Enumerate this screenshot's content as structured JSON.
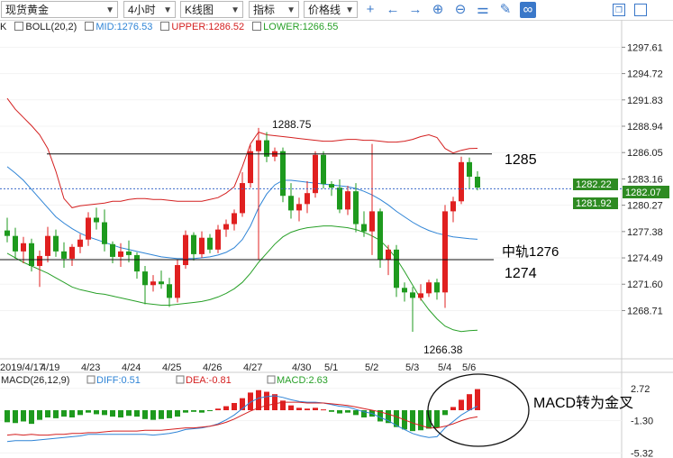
{
  "toolbar": {
    "symbol": "现货黄金",
    "period": "4小时",
    "chart_type": "K线图",
    "indicator": "指标",
    "price_line": "价格线",
    "icons": [
      "crosshair-icon",
      "arrow-left-icon",
      "arrow-right-icon",
      "zoom-in-icon",
      "zoom-out-icon",
      "chart-settings-icon",
      "draw-pen-icon",
      "link-icon",
      "window-restore-icon",
      "window-maximize-icon"
    ]
  },
  "legend": {
    "prefix": "K",
    "indicator": "BOLL(20,2)",
    "mid": "MID:1276.53",
    "upper": "UPPER:1286.52",
    "lower": "LOWER:1266.55"
  },
  "macd_legend": {
    "indicator": "MACD(26,12,9)",
    "diff": "DIFF:0.51",
    "dea": "DEA:-0.81",
    "macd": "MACD:2.63"
  },
  "colors": {
    "up": "#e02020",
    "down": "#1e9a1e",
    "upper_band": "#d42020",
    "mid_band": "#2f84d6",
    "lower_band": "#28a028",
    "current_price_box": "#2e8b22"
  },
  "annotations": {
    "high_label": "1288.75",
    "low_label": "1266.38",
    "line_1285": "1285",
    "line_1274": "1274",
    "mid_label": "中轨1276",
    "macd_note": "MACD转为金叉"
  },
  "price_boxes": [
    "1282.22",
    "1282.07",
    "1281.92"
  ],
  "chart_data": [
    {
      "type": "candlestick",
      "title": "现货黄金 4小时",
      "y_ticks": [
        "1297.61",
        "1294.72",
        "1291.83",
        "1288.94",
        "1286.05",
        "1283.16",
        "1280.27",
        "1277.38",
        "1274.49",
        "1271.60",
        "1268.71"
      ],
      "ylim": [
        1265.5,
        1299.0
      ],
      "x_ticks": [
        "2019/4/17",
        "4/19",
        "4/23",
        "4/24",
        "4/25",
        "4/26",
        "4/27",
        "4/30",
        "5/1",
        "5/2",
        "5/3",
        "5/4",
        "5/6"
      ],
      "horizontal_lines": [
        1285.9,
        1274.3
      ],
      "candles": [
        [
          1277.5,
          1278.9,
          1276.2,
          1276.9
        ],
        [
          1276.9,
          1277.8,
          1274.4,
          1275.2
        ],
        [
          1275.2,
          1276.8,
          1273.9,
          1276.1
        ],
        [
          1276.1,
          1276.6,
          1273.0,
          1273.6
        ],
        [
          1273.6,
          1275.3,
          1271.3,
          1274.7
        ],
        [
          1274.7,
          1277.9,
          1274.0,
          1276.9
        ],
        [
          1276.9,
          1277.6,
          1274.6,
          1275.2
        ],
        [
          1275.2,
          1276.2,
          1273.4,
          1274.4
        ],
        [
          1274.4,
          1276.0,
          1273.6,
          1275.7
        ],
        [
          1275.7,
          1277.1,
          1275.0,
          1276.5
        ],
        [
          1276.5,
          1279.5,
          1275.8,
          1278.9
        ],
        [
          1278.9,
          1280.0,
          1277.6,
          1278.4
        ],
        [
          1278.4,
          1279.8,
          1275.2,
          1276.0
        ],
        [
          1276.0,
          1276.3,
          1273.9,
          1274.6
        ],
        [
          1274.6,
          1276.1,
          1273.5,
          1275.2
        ],
        [
          1275.2,
          1276.4,
          1274.0,
          1274.8
        ],
        [
          1274.8,
          1275.1,
          1272.2,
          1273.0
        ],
        [
          1273.0,
          1273.6,
          1269.4,
          1271.5
        ],
        [
          1271.5,
          1272.6,
          1270.8,
          1271.9
        ],
        [
          1271.9,
          1273.1,
          1271.1,
          1271.6
        ],
        [
          1271.6,
          1272.3,
          1269.1,
          1270.1
        ],
        [
          1270.1,
          1274.3,
          1269.6,
          1273.7
        ],
        [
          1273.7,
          1277.5,
          1273.3,
          1277.0
        ],
        [
          1277.0,
          1277.3,
          1274.2,
          1274.9
        ],
        [
          1274.9,
          1277.4,
          1274.5,
          1276.7
        ],
        [
          1276.7,
          1277.1,
          1275.0,
          1275.4
        ],
        [
          1275.4,
          1278.1,
          1275.0,
          1277.6
        ],
        [
          1277.6,
          1278.7,
          1276.8,
          1278.2
        ],
        [
          1278.2,
          1279.8,
          1277.5,
          1279.4
        ],
        [
          1279.4,
          1283.9,
          1279.0,
          1282.7
        ],
        [
          1282.7,
          1286.9,
          1282.2,
          1286.2
        ],
        [
          1286.2,
          1288.75,
          1274.3,
          1287.4
        ],
        [
          1287.4,
          1288.3,
          1285.0,
          1285.6
        ],
        [
          1285.6,
          1286.6,
          1285.1,
          1286.2
        ],
        [
          1286.2,
          1286.6,
          1280.6,
          1281.3
        ],
        [
          1281.3,
          1282.7,
          1278.8,
          1279.7
        ],
        [
          1279.7,
          1281.1,
          1278.5,
          1280.4
        ],
        [
          1280.4,
          1282.9,
          1279.4,
          1281.6
        ],
        [
          1281.6,
          1286.2,
          1281.1,
          1285.8
        ],
        [
          1285.8,
          1286.2,
          1282.1,
          1282.6
        ],
        [
          1282.6,
          1282.9,
          1281.3,
          1282.2
        ],
        [
          1282.2,
          1283.1,
          1279.4,
          1279.8
        ],
        [
          1279.8,
          1282.4,
          1279.2,
          1281.8
        ],
        [
          1281.8,
          1282.7,
          1277.3,
          1278.2
        ],
        [
          1278.2,
          1279.6,
          1276.8,
          1277.4
        ],
        [
          1277.4,
          1287.0,
          1274.8,
          1279.6
        ],
        [
          1279.6,
          1279.9,
          1273.4,
          1274.3
        ],
        [
          1274.3,
          1275.9,
          1272.6,
          1275.4
        ],
        [
          1275.4,
          1275.9,
          1270.2,
          1271.2
        ],
        [
          1271.2,
          1271.8,
          1269.7,
          1270.7
        ],
        [
          1270.7,
          1271.3,
          1266.38,
          1270.1
        ],
        [
          1270.1,
          1271.6,
          1269.8,
          1270.6
        ],
        [
          1270.6,
          1272.1,
          1270.2,
          1271.8
        ],
        [
          1271.8,
          1272.2,
          1269.9,
          1270.7
        ],
        [
          1270.7,
          1280.3,
          1269.0,
          1279.6
        ],
        [
          1279.6,
          1281.2,
          1278.4,
          1280.7
        ],
        [
          1280.7,
          1285.6,
          1280.4,
          1285.0
        ],
        [
          1285.0,
          1285.5,
          1282.1,
          1283.4
        ],
        [
          1283.4,
          1284.0,
          1281.9,
          1282.2
        ]
      ],
      "upper_band": [
        1292.0,
        1290.8,
        1289.9,
        1289.0,
        1288.0,
        1286.5,
        1284.0,
        1281.0,
        1280.0,
        1280.2,
        1280.3,
        1280.4,
        1280.5,
        1280.7,
        1280.7,
        1280.9,
        1281.0,
        1281.0,
        1280.9,
        1280.9,
        1280.8,
        1280.7,
        1280.7,
        1280.7,
        1280.7,
        1280.9,
        1281.1,
        1281.6,
        1282.3,
        1284.5,
        1287.0,
        1288.3,
        1288.0,
        1287.9,
        1287.8,
        1287.7,
        1287.6,
        1287.5,
        1287.4,
        1287.3,
        1287.3,
        1287.4,
        1287.5,
        1287.5,
        1287.4,
        1287.4,
        1287.3,
        1287.2,
        1287.2,
        1287.3,
        1287.5,
        1287.8,
        1288.0,
        1287.7,
        1286.5,
        1286.0,
        1286.3,
        1286.5,
        1286.52
      ],
      "mid_band": [
        1284.5,
        1283.8,
        1283.0,
        1282.0,
        1281.0,
        1280.0,
        1279.0,
        1278.3,
        1277.7,
        1277.2,
        1276.8,
        1276.5,
        1276.2,
        1275.9,
        1275.6,
        1275.4,
        1275.2,
        1275.0,
        1274.8,
        1274.6,
        1274.5,
        1274.4,
        1274.4,
        1274.4,
        1274.5,
        1274.6,
        1274.8,
        1275.1,
        1275.6,
        1276.5,
        1278.0,
        1280.0,
        1281.5,
        1282.5,
        1283.0,
        1283.0,
        1282.9,
        1282.8,
        1282.7,
        1282.6,
        1282.5,
        1282.4,
        1282.3,
        1282.1,
        1281.8,
        1281.4,
        1280.9,
        1280.3,
        1279.6,
        1279.0,
        1278.4,
        1277.9,
        1277.5,
        1277.2,
        1277.0,
        1276.8,
        1276.7,
        1276.6,
        1276.53
      ],
      "lower_band": [
        1275.0,
        1274.5,
        1274.0,
        1273.6,
        1273.2,
        1272.8,
        1272.3,
        1271.8,
        1271.3,
        1271.0,
        1270.8,
        1270.6,
        1270.5,
        1270.3,
        1270.1,
        1269.9,
        1269.7,
        1269.5,
        1269.4,
        1269.3,
        1269.3,
        1269.4,
        1269.5,
        1269.6,
        1269.7,
        1269.9,
        1270.2,
        1270.6,
        1271.1,
        1271.8,
        1272.8,
        1274.0,
        1275.0,
        1276.0,
        1276.8,
        1277.3,
        1277.6,
        1277.8,
        1277.9,
        1278.0,
        1278.0,
        1277.9,
        1277.8,
        1277.6,
        1277.3,
        1276.9,
        1276.4,
        1275.5,
        1274.4,
        1273.0,
        1271.5,
        1270.0,
        1268.8,
        1267.8,
        1267.0,
        1266.6,
        1266.4,
        1266.5,
        1266.55
      ],
      "x_tick_index": [
        0,
        5,
        10,
        15,
        20,
        25,
        30,
        36,
        40,
        45,
        50,
        54,
        57
      ]
    },
    {
      "type": "bar",
      "title": "MACD(26,12,9)",
      "y_ticks": [
        "2.72",
        "-1.30",
        "-5.32"
      ],
      "ylim": [
        -5.32,
        2.72
      ],
      "macd_hist": [
        -1.5,
        -1.6,
        -1.4,
        -1.7,
        -1.2,
        -0.9,
        -1.0,
        -0.8,
        -0.9,
        -0.6,
        -0.3,
        -0.5,
        -0.6,
        -0.8,
        -0.9,
        -0.7,
        -0.8,
        -1.1,
        -1.2,
        -1.1,
        -1.0,
        -0.8,
        -0.3,
        -0.2,
        -0.3,
        -0.1,
        0.2,
        0.5,
        0.9,
        1.5,
        2.2,
        2.5,
        2.3,
        2.0,
        1.2,
        0.6,
        0.3,
        0.2,
        0.3,
        0.1,
        -0.2,
        -0.4,
        -0.3,
        -0.6,
        -0.9,
        -0.8,
        -1.4,
        -1.6,
        -2.1,
        -2.4,
        -2.6,
        -2.5,
        -2.3,
        -2.2,
        -0.6,
        0.4,
        1.3,
        2.0,
        2.63
      ],
      "diff": [
        -3.9,
        -3.8,
        -3.8,
        -3.8,
        -3.7,
        -3.6,
        -3.5,
        -3.4,
        -3.3,
        -3.2,
        -3.0,
        -3.0,
        -3.0,
        -3.0,
        -3.0,
        -3.0,
        -3.0,
        -3.0,
        -3.1,
        -3.0,
        -2.9,
        -2.7,
        -2.4,
        -2.3,
        -2.2,
        -2.0,
        -1.7,
        -1.2,
        -0.6,
        0.2,
        1.0,
        1.5,
        1.7,
        1.8,
        1.6,
        1.3,
        1.1,
        1.0,
        1.0,
        0.9,
        0.7,
        0.5,
        0.4,
        0.1,
        -0.2,
        -0.4,
        -0.9,
        -1.3,
        -1.9,
        -2.4,
        -2.9,
        -3.2,
        -3.4,
        -3.3,
        -2.2,
        -1.4,
        -0.6,
        0.0,
        0.51
      ],
      "dea": [
        -3.1,
        -3.0,
        -3.1,
        -3.0,
        -3.1,
        -3.1,
        -3.0,
        -3.0,
        -2.9,
        -2.9,
        -2.8,
        -2.8,
        -2.7,
        -2.6,
        -2.6,
        -2.6,
        -2.6,
        -2.5,
        -2.5,
        -2.5,
        -2.4,
        -2.3,
        -2.2,
        -2.2,
        -2.1,
        -2.0,
        -1.8,
        -1.5,
        -1.1,
        -0.6,
        -0.1,
        0.3,
        0.6,
        0.8,
        1.0,
        1.0,
        1.0,
        0.9,
        0.9,
        0.9,
        0.8,
        0.7,
        0.6,
        0.4,
        0.2,
        0.0,
        -0.2,
        -0.5,
        -0.8,
        -1.2,
        -1.6,
        -1.9,
        -2.2,
        -2.2,
        -2.0,
        -1.7,
        -1.3,
        -1.0,
        -0.81
      ]
    }
  ]
}
